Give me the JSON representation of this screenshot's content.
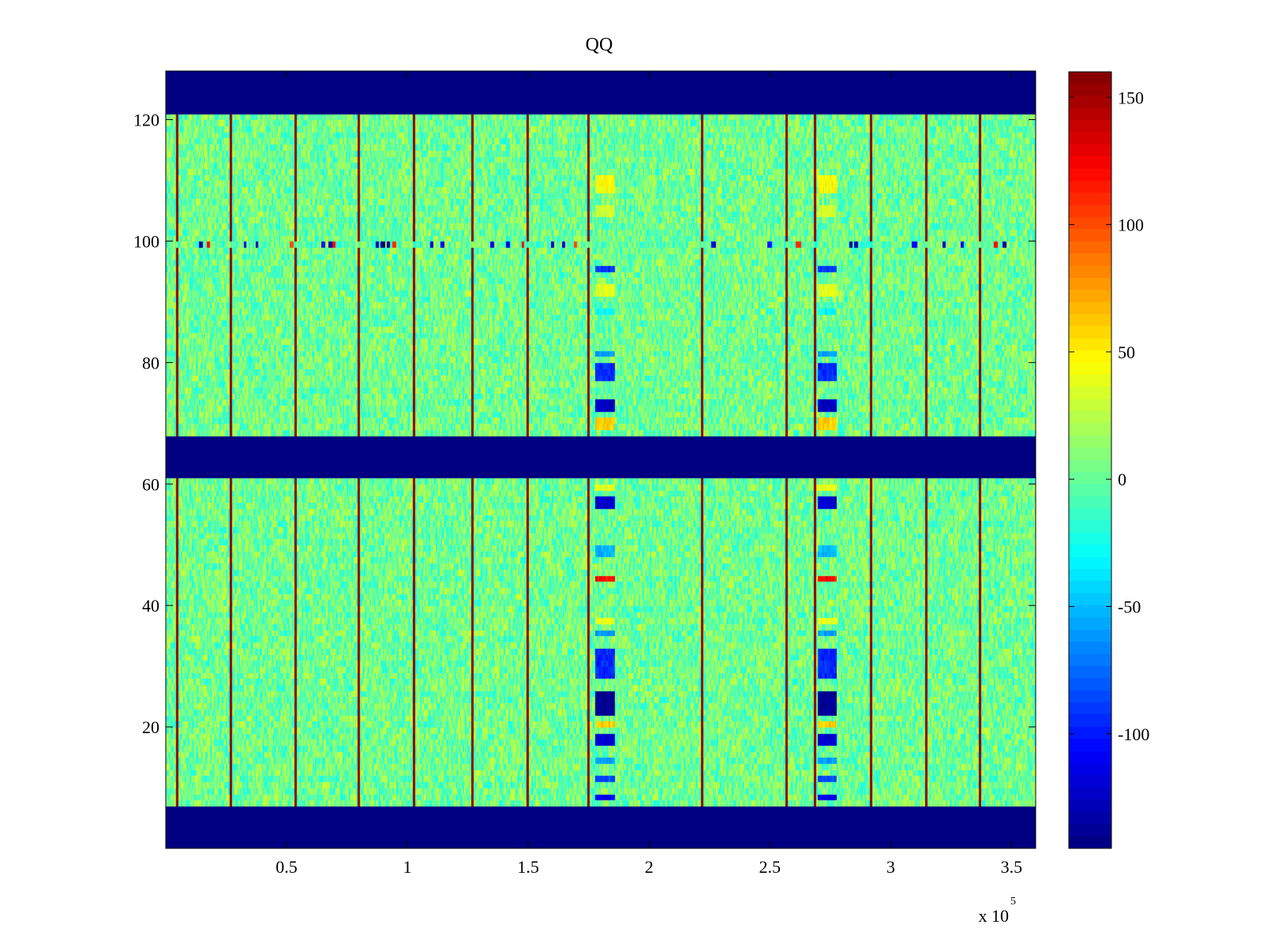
{
  "chart_data": {
    "type": "heatmap",
    "title": "QQ",
    "xlabel": "",
    "ylabel": "",
    "x_exponent_label": "x 10",
    "x_exponent": "5",
    "xlim": [
      0.0,
      3.6
    ],
    "ylim": [
      0,
      128
    ],
    "xticks": [
      {
        "value": 0.5,
        "label": "0.5"
      },
      {
        "value": 1,
        "label": "1"
      },
      {
        "value": 1.5,
        "label": "1.5"
      },
      {
        "value": 2,
        "label": "2"
      },
      {
        "value": 2.5,
        "label": "2.5"
      },
      {
        "value": 3,
        "label": "3"
      },
      {
        "value": 3.5,
        "label": "3.5"
      }
    ],
    "yticks": [
      {
        "value": 20,
        "label": "20"
      },
      {
        "value": 40,
        "label": "40"
      },
      {
        "value": 60,
        "label": "60"
      },
      {
        "value": 80,
        "label": "80"
      },
      {
        "value": 100,
        "label": "100"
      },
      {
        "value": 120,
        "label": "120"
      }
    ],
    "colormap": "jet",
    "clim": [
      -145,
      160
    ],
    "colorbar_ticks": [
      {
        "value": 150,
        "label": "150"
      },
      {
        "value": 100,
        "label": "100"
      },
      {
        "value": 50,
        "label": "50"
      },
      {
        "value": 0,
        "label": "0"
      },
      {
        "value": -50,
        "label": "-50"
      },
      {
        "value": -100,
        "label": "-100"
      }
    ],
    "background_value": 3,
    "noise_amplitude": 30,
    "masked_bands_y": [
      [
        0,
        7
      ],
      [
        61,
        68
      ],
      [
        121,
        128
      ]
    ],
    "masked_value": -145,
    "hot_columns_x": [
      0.05,
      0.27,
      0.54,
      0.8,
      1.03,
      1.27,
      1.5,
      1.75,
      2.22,
      2.57,
      2.69,
      2.92,
      3.15,
      3.37
    ],
    "hot_column_value": 155,
    "anomaly_columns": [
      {
        "x_range": [
          1.78,
          1.86
        ]
      },
      {
        "x_range": [
          2.7,
          2.78
        ]
      }
    ],
    "anomaly_rows": [
      {
        "y_range": [
          8,
          9
        ],
        "value": -110
      },
      {
        "y_range": [
          11,
          12
        ],
        "value": -85
      },
      {
        "y_range": [
          14,
          15
        ],
        "value": -60
      },
      {
        "y_range": [
          17,
          19
        ],
        "value": -120
      },
      {
        "y_range": [
          20,
          21
        ],
        "value": 60
      },
      {
        "y_range": [
          22,
          26
        ],
        "value": -140
      },
      {
        "y_range": [
          28,
          33
        ],
        "value": -95
      },
      {
        "y_range": [
          35,
          36
        ],
        "value": -60
      },
      {
        "y_range": [
          37,
          38
        ],
        "value": 40
      },
      {
        "y_range": [
          44,
          45
        ],
        "value": 120
      },
      {
        "y_range": [
          48,
          50
        ],
        "value": -50
      },
      {
        "y_range": [
          56,
          58
        ],
        "value": -120
      },
      {
        "y_range": [
          59,
          60
        ],
        "value": 40
      },
      {
        "y_range": [
          69,
          71
        ],
        "value": 60
      },
      {
        "y_range": [
          72,
          74
        ],
        "value": -125
      },
      {
        "y_range": [
          77,
          80
        ],
        "value": -95
      },
      {
        "y_range": [
          81,
          82
        ],
        "value": -60
      },
      {
        "y_range": [
          88,
          89
        ],
        "value": -30
      },
      {
        "y_range": [
          91,
          93
        ],
        "value": 35
      },
      {
        "y_range": [
          95,
          96
        ],
        "value": -90
      },
      {
        "y_range": [
          104,
          106
        ],
        "value": 30
      },
      {
        "y_range": [
          108,
          111
        ],
        "value": 45
      }
    ],
    "row_100_spikes": [
      {
        "x": 0.15,
        "value": -130
      },
      {
        "x": 0.18,
        "value": 120
      },
      {
        "x": 0.33,
        "value": -110
      },
      {
        "x": 0.38,
        "value": -130
      },
      {
        "x": 0.52,
        "value": 100
      },
      {
        "x": 0.65,
        "value": -100
      },
      {
        "x": 0.68,
        "value": -130
      },
      {
        "x": 0.7,
        "value": 120
      },
      {
        "x": 0.88,
        "value": -140
      },
      {
        "x": 0.9,
        "value": -145
      },
      {
        "x": 0.92,
        "value": -140
      },
      {
        "x": 0.95,
        "value": 110
      },
      {
        "x": 1.1,
        "value": -120
      },
      {
        "x": 1.15,
        "value": -110
      },
      {
        "x": 1.35,
        "value": -110
      },
      {
        "x": 1.42,
        "value": -120
      },
      {
        "x": 1.48,
        "value": 120
      },
      {
        "x": 1.6,
        "value": -120
      },
      {
        "x": 1.65,
        "value": -110
      },
      {
        "x": 1.7,
        "value": 100
      },
      {
        "x": 2.27,
        "value": -120
      },
      {
        "x": 2.5,
        "value": -100
      },
      {
        "x": 2.62,
        "value": 110
      },
      {
        "x": 2.84,
        "value": -140
      },
      {
        "x": 2.86,
        "value": -130
      },
      {
        "x": 3.1,
        "value": -110
      },
      {
        "x": 3.22,
        "value": -120
      },
      {
        "x": 3.3,
        "value": -110
      },
      {
        "x": 3.44,
        "value": 120
      },
      {
        "x": 3.47,
        "value": -130
      }
    ]
  }
}
